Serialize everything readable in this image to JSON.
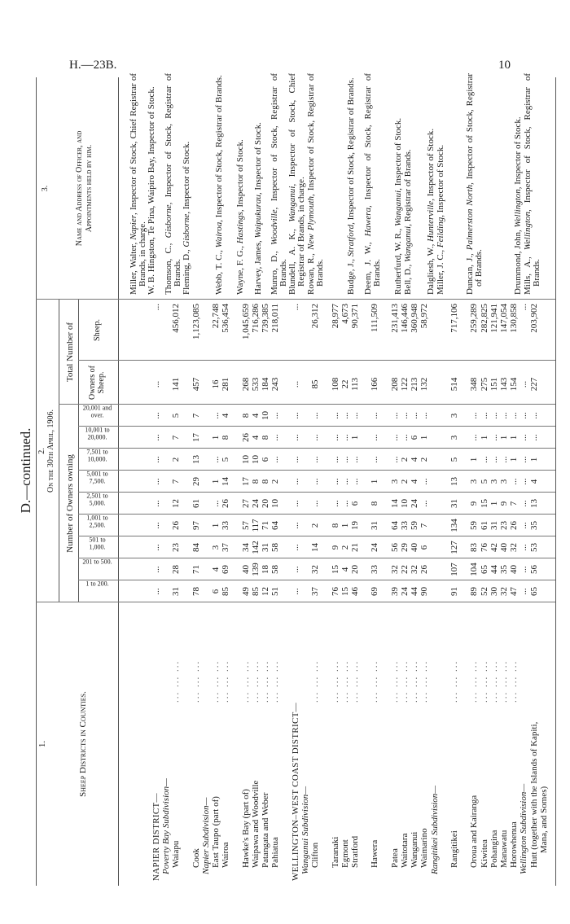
{
  "page": {
    "ref": "H.—23B.",
    "number": "10"
  },
  "section": "D.—continued.",
  "headers": {
    "col1_num": "1.",
    "col1_title": "Sheep Districts in Counties.",
    "col2_num": "2.",
    "col2_title": "On the 30th April, 1906.",
    "owners_owning": "Number of Owners owning",
    "total_number": "Total Number of",
    "ranges": [
      "1 to 200.",
      "201 to 500.",
      "501 to 1,000.",
      "1,001 to 2,500.",
      "2,501 to 5,000.",
      "5,001 to 7,500.",
      "7,501 to 10,000.",
      "10,001 to 20,000.",
      "20,001 and over."
    ],
    "owners_of_sheep": "Owners of Sheep.",
    "sheep": "Sheep.",
    "col3_num": "3.",
    "col3_title_1": "Name and Address of Officer, and",
    "col3_title_2": "Appointments held by him."
  },
  "rows": [
    {
      "type": "district",
      "label": "NAPIER DISTRICT—",
      "counts": [
        "...",
        "...",
        "...",
        "...",
        "...",
        "...",
        "...",
        "...",
        "..."
      ],
      "owners": "...",
      "sheep": "..."
    },
    {
      "type": "subdiv",
      "label": "Poverty Bay Subdivision—"
    },
    {
      "type": "county",
      "label": "Waiapu",
      "counts": [
        "31",
        "28",
        "23",
        "26",
        "12",
        "7",
        "2",
        "7",
        "5"
      ],
      "owners": "141",
      "sheep": "456,012"
    },
    {
      "type": "blank"
    },
    {
      "type": "county",
      "label": "Cook",
      "counts": [
        "78",
        "71",
        "84",
        "97",
        "61",
        "29",
        "13",
        "17",
        "7"
      ],
      "owners": "457",
      "sheep": "1,123,085"
    },
    {
      "type": "subdiv",
      "label": "Napier Subdivision—"
    },
    {
      "type": "county",
      "label": "East Taupo (part of)",
      "counts": [
        "6",
        "4",
        "3",
        "1",
        "...",
        "1",
        "...",
        "1",
        "..."
      ],
      "owners": "16",
      "sheep": "22,748"
    },
    {
      "type": "county",
      "label": "Wairoa",
      "counts": [
        "85",
        "69",
        "37",
        "33",
        "26",
        "14",
        "5",
        "8",
        "4"
      ],
      "owners": "281",
      "sheep": "536,454"
    },
    {
      "type": "blank"
    },
    {
      "type": "county",
      "label": "Hawke's Bay (part of)",
      "counts": [
        "49",
        "40",
        "34",
        "57",
        "27",
        "17",
        "10",
        "26",
        "8"
      ],
      "owners": "268",
      "sheep": "1,045,659"
    },
    {
      "type": "county",
      "label": "Waipawa and Woodville",
      "counts": [
        "85",
        "139",
        "142",
        "117",
        "24",
        "8",
        "10",
        "4",
        "4"
      ],
      "owners": "533",
      "sheep": "716,286"
    },
    {
      "type": "county",
      "label": "Patangata and Weber",
      "counts": [
        "12",
        "18",
        "31",
        "71",
        "20",
        "8",
        "6",
        "8",
        "10"
      ],
      "owners": "184",
      "sheep": "739,385"
    },
    {
      "type": "county",
      "label": "Pahiatua",
      "counts": [
        "51",
        "58",
        "58",
        "64",
        "10",
        "2",
        "...",
        "...",
        "..."
      ],
      "owners": "243",
      "sheep": "218,011"
    },
    {
      "type": "blank"
    },
    {
      "type": "district",
      "label": "WELLINGTON–WEST COAST DISTRICT—",
      "counts": [
        "...",
        "...",
        "...",
        "...",
        "...",
        "...",
        "...",
        "...",
        "..."
      ],
      "owners": "...",
      "sheep": "..."
    },
    {
      "type": "subdiv",
      "label": "Wanganui Subdivision—"
    },
    {
      "type": "county",
      "label": "Clifton",
      "counts": [
        "37",
        "32",
        "14",
        "2",
        "...",
        "...",
        "...",
        "...",
        "..."
      ],
      "owners": "85",
      "sheep": "26,312"
    },
    {
      "type": "blank"
    },
    {
      "type": "county",
      "label": "Taranaki",
      "counts": [
        "76",
        "15",
        "9",
        "8",
        "...",
        "...",
        "...",
        "...",
        "..."
      ],
      "owners": "108",
      "sheep": "28,977"
    },
    {
      "type": "county",
      "label": "Egmont",
      "counts": [
        "15",
        "4",
        "2",
        "1",
        "...",
        "...",
        "...",
        "...",
        "..."
      ],
      "owners": "22",
      "sheep": "4,673"
    },
    {
      "type": "county",
      "label": "Stratford",
      "counts": [
        "46",
        "20",
        "21",
        "19",
        "6",
        "...",
        "...",
        "1",
        "..."
      ],
      "owners": "113",
      "sheep": "90,371"
    },
    {
      "type": "blank"
    },
    {
      "type": "county",
      "label": "Hawera",
      "counts": [
        "69",
        "33",
        "24",
        "31",
        "8",
        "1",
        "...",
        "...",
        "..."
      ],
      "owners": "166",
      "sheep": "111,509"
    },
    {
      "type": "blank"
    },
    {
      "type": "county",
      "label": "Patea",
      "counts": [
        "39",
        "32",
        "56",
        "64",
        "14",
        "3",
        "...",
        "...",
        "..."
      ],
      "owners": "208",
      "sheep": "231,413"
    },
    {
      "type": "county",
      "label": "Waitotara",
      "counts": [
        "24",
        "22",
        "29",
        "33",
        "10",
        "2",
        "2",
        "...",
        "..."
      ],
      "owners": "122",
      "sheep": "146,446"
    },
    {
      "type": "county",
      "label": "Wanganui",
      "counts": [
        "44",
        "32",
        "40",
        "59",
        "24",
        "4",
        "4",
        "6",
        "..."
      ],
      "owners": "213",
      "sheep": "360,948"
    },
    {
      "type": "county",
      "label": "Waimarino",
      "counts": [
        "90",
        "26",
        "6",
        "7",
        "...",
        "...",
        "2",
        "1",
        "..."
      ],
      "owners": "132",
      "sheep": "58,972"
    },
    {
      "type": "subdiv",
      "label": "Rangitikei Subdivision—"
    },
    {
      "type": "blank"
    },
    {
      "type": "county",
      "label": "Rangitikei",
      "counts": [
        "91",
        "107",
        "127",
        "134",
        "31",
        "13",
        "5",
        "3",
        "3"
      ],
      "owners": "514",
      "sheep": "717,106"
    },
    {
      "type": "blank"
    },
    {
      "type": "county",
      "label": "Oroua and Kairanga",
      "counts": [
        "89",
        "104",
        "83",
        "59",
        "9",
        "3",
        "1",
        "...",
        "..."
      ],
      "owners": "348",
      "sheep": "259,289"
    },
    {
      "type": "county",
      "label": "Kiwitea",
      "counts": [
        "52",
        "65",
        "76",
        "61",
        "15",
        "5",
        "...",
        "1",
        "..."
      ],
      "owners": "275",
      "sheep": "282,825"
    },
    {
      "type": "county",
      "label": "Pohangina",
      "counts": [
        "30",
        "44",
        "42",
        "31",
        "1",
        "3",
        "...",
        "...",
        "..."
      ],
      "owners": "151",
      "sheep": "121,941"
    },
    {
      "type": "county",
      "label": "Manawatu",
      "counts": [
        "32",
        "35",
        "40",
        "23",
        "9",
        "3",
        "...",
        "1",
        "..."
      ],
      "owners": "143",
      "sheep": "147,054"
    },
    {
      "type": "county",
      "label": "Horowhenua",
      "counts": [
        "47",
        "40",
        "32",
        "26",
        "7",
        "...",
        "1",
        "1",
        "..."
      ],
      "owners": "154",
      "sheep": "130,858"
    },
    {
      "type": "subdiv",
      "label": "Wellington Subdivision—",
      "counts": [
        "...",
        "...",
        "...",
        "...",
        "...",
        "...",
        "...",
        "...",
        "..."
      ],
      "owners": "...",
      "sheep": "..."
    },
    {
      "type": "county",
      "label": "Hutt (together with the Islands of Kapiti,",
      "counts": [
        "65",
        "56",
        "53",
        "35",
        "13",
        "4",
        "1",
        "...",
        "..."
      ],
      "owners": "227",
      "sheep": "203,902"
    },
    {
      "type": "cont",
      "label": "Mana, and Somes)"
    }
  ],
  "officers": [
    {
      "name": "Miller, Walter, ",
      "place": "Napier",
      "role": ", Inspector of Stock, Chief Registrar of Brands, in charge."
    },
    {
      "name": "W. B. Hingston, Te Pina, Waipiro Bay, Inspector of Stock.",
      "place": "",
      "role": ""
    },
    {
      "name": "Thomson, C., ",
      "place": "Gisborne",
      "role": ", Inspector of Stock, Registrar of Brands."
    },
    {
      "name": "Fleming, D., ",
      "place": "Gisborne",
      "role": ", Inspector of Stock."
    },
    {
      "name": "Webb, T. C., ",
      "place": "Wairoa",
      "role": ", Inspector of Stock, Registrar of Brands."
    },
    {
      "name": "Wayne, F. G., ",
      "place": "Hastings",
      "role": ", Inspector of Stock."
    },
    {
      "name": "Harvey, James, ",
      "place": "Waipukurau",
      "role": ", Inspector of Stock."
    },
    {
      "name": "Munro, D., ",
      "place": "Woodville",
      "role": ", Inspector of Stock, Registrar of Brands."
    },
    {
      "name": "Blundell, A. K., ",
      "place": "Wanganui",
      "role": ", Inspector of Stock, Chief Registrar of Brands, in charge."
    },
    {
      "name": "Rowan, R., ",
      "place": "New Plymouth",
      "role": ", Inspector of Stock, Registrar of Brands."
    },
    {
      "name": "Budge, J., ",
      "place": "Stratford",
      "role": ", Inspector of Stock, Registrar of Brands."
    },
    {
      "name": "Deem, J. W., ",
      "place": "Hawera",
      "role": ", Inspector of Stock, Registrar of Brands."
    },
    {
      "name": "Rutherfurd, W. R., ",
      "place": "Wanganui",
      "role": ", Inspector of Stock."
    },
    {
      "name": "Bell, D., ",
      "place": "Wanganui",
      "role": ", Registrar of Brands."
    },
    {
      "name": "Dalgliesh, W., ",
      "place": "Hunterville",
      "role": ", Inspector of Stock."
    },
    {
      "name": "Miller, J. C., ",
      "place": "Feilding",
      "role": ", Inspector of Stock."
    },
    {
      "name": "Duncan, J., ",
      "place": "Palmerston North",
      "role": ", Inspector of Stock, Registrar of Brands."
    },
    {
      "name": "Drummond, John, ",
      "place": "Wellington",
      "role": ", Inspector of Stock."
    },
    {
      "name": "Mills, A., ",
      "place": "Wellington",
      "role": ", Inspector of Stock, Registrar of Brands."
    }
  ]
}
